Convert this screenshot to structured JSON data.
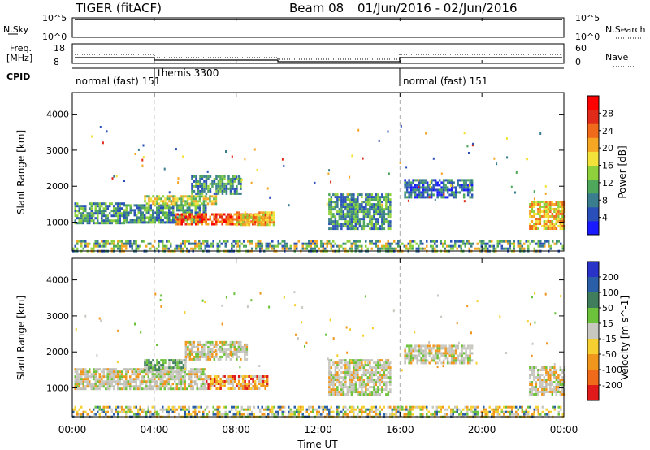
{
  "header": {
    "radar": "TIGER (fitACF)",
    "beam": "Beam 08",
    "date_range": "01/Jun/2016 - 02/Jun/2016"
  },
  "strips": {
    "nsky": {
      "label": "N.Sky",
      "ticks": [
        "10^5",
        "10^0"
      ]
    },
    "nsearch": {
      "label": "N.Search",
      "ticks": [
        "10^5",
        "10^0"
      ]
    },
    "freq": {
      "label_line1": "Freq.",
      "label_line2": "[MHz]",
      "ticks": [
        "18",
        "8"
      ]
    },
    "nave": {
      "label": "Nave",
      "ticks": [
        "60",
        "0"
      ]
    },
    "cpid": {
      "label": "CPID",
      "segments": [
        {
          "name": "normal (fast) 151",
          "start_hour": 0
        },
        {
          "name": "themis 3300",
          "start_hour": 4
        },
        {
          "name": "normal (fast) 151",
          "start_hour": 16
        }
      ]
    }
  },
  "chart_data": [
    {
      "type": "heatmap",
      "panel": "power",
      "ylabel": "Slant Range [km]",
      "yticks": [
        "1000",
        "2000",
        "3000",
        "4000"
      ],
      "ylim": [
        200,
        4600
      ],
      "xlim_hours": [
        0,
        24
      ],
      "colorbar": {
        "label": "Power [dB]",
        "ticks": [
          "4",
          "8",
          "12",
          "16",
          "20",
          "24",
          "28"
        ],
        "colors": [
          "#1a1aff",
          "#2a4fb8",
          "#3a7d8e",
          "#4ea75a",
          "#8fd13c",
          "#f3e23a",
          "#f5a623",
          "#f06a1c",
          "#e02a1a",
          "#ff0000"
        ]
      },
      "echo_regions": [
        {
          "x0": 0.1,
          "x1": 2.5,
          "r0": 1000,
          "r1": 1550,
          "level": "green"
        },
        {
          "x0": 2.5,
          "x1": 6.5,
          "r0": 1000,
          "r1": 1500,
          "level": "green"
        },
        {
          "x0": 3.5,
          "x1": 7.0,
          "r0": 1500,
          "r1": 1750,
          "level": "yellow"
        },
        {
          "x0": 5.8,
          "x1": 8.2,
          "r0": 1800,
          "r1": 2300,
          "level": "green"
        },
        {
          "x0": 5.0,
          "x1": 9.5,
          "r0": 950,
          "r1": 1250,
          "level": "red"
        },
        {
          "x0": 8.0,
          "x1": 9.8,
          "r0": 950,
          "r1": 1300,
          "level": "orange"
        },
        {
          "x0": 12.5,
          "x1": 15.5,
          "r0": 800,
          "r1": 1800,
          "level": "green"
        },
        {
          "x0": 16.2,
          "x1": 19.5,
          "r0": 1700,
          "r1": 2200,
          "level": "blue"
        },
        {
          "x0": 22.3,
          "x1": 24.0,
          "r0": 800,
          "r1": 1600,
          "level": "orange"
        },
        {
          "x0": 0.0,
          "x1": 24.0,
          "r0": 200,
          "r1": 500,
          "level": "mixed"
        }
      ]
    },
    {
      "type": "heatmap",
      "panel": "velocity",
      "ylabel": "Slant Range [km]",
      "yticks": [
        "1000",
        "2000",
        "3000",
        "4000"
      ],
      "ylim": [
        200,
        4600
      ],
      "xlim_hours": [
        0,
        24
      ],
      "xlabel": "Time UT",
      "xticks": [
        "00:00",
        "04:00",
        "08:00",
        "12:00",
        "16:00",
        "20:00",
        "00:00"
      ],
      "colorbar": {
        "label": "Velocity [m s^-1]",
        "ticks": [
          "200",
          "100",
          "50",
          "15",
          "-15",
          "-50",
          "-100",
          "-200"
        ],
        "colors": [
          "#2a33c8",
          "#2a5fa8",
          "#3f7d5c",
          "#6cc23a",
          "#c8c8c0",
          "#f5d030",
          "#f0961c",
          "#f06a1c",
          "#e01a1a"
        ]
      },
      "echo_regions": [
        {
          "x0": 0.1,
          "x1": 6.5,
          "r0": 1000,
          "r1": 1550,
          "level": "grey"
        },
        {
          "x0": 3.5,
          "x1": 5.5,
          "r0": 1500,
          "r1": 1800,
          "level": "green"
        },
        {
          "x0": 5.5,
          "x1": 8.5,
          "r0": 1800,
          "r1": 2300,
          "level": "grey"
        },
        {
          "x0": 6.5,
          "x1": 9.5,
          "r0": 950,
          "r1": 1350,
          "level": "orange"
        },
        {
          "x0": 12.5,
          "x1": 15.5,
          "r0": 800,
          "r1": 1800,
          "level": "grey"
        },
        {
          "x0": 16.2,
          "x1": 19.5,
          "r0": 1700,
          "r1": 2200,
          "level": "grey"
        },
        {
          "x0": 22.3,
          "x1": 24.0,
          "r0": 800,
          "r1": 1600,
          "level": "grey"
        },
        {
          "x0": 0.0,
          "x1": 24.0,
          "r0": 200,
          "r1": 500,
          "level": "yellow"
        }
      ]
    }
  ]
}
